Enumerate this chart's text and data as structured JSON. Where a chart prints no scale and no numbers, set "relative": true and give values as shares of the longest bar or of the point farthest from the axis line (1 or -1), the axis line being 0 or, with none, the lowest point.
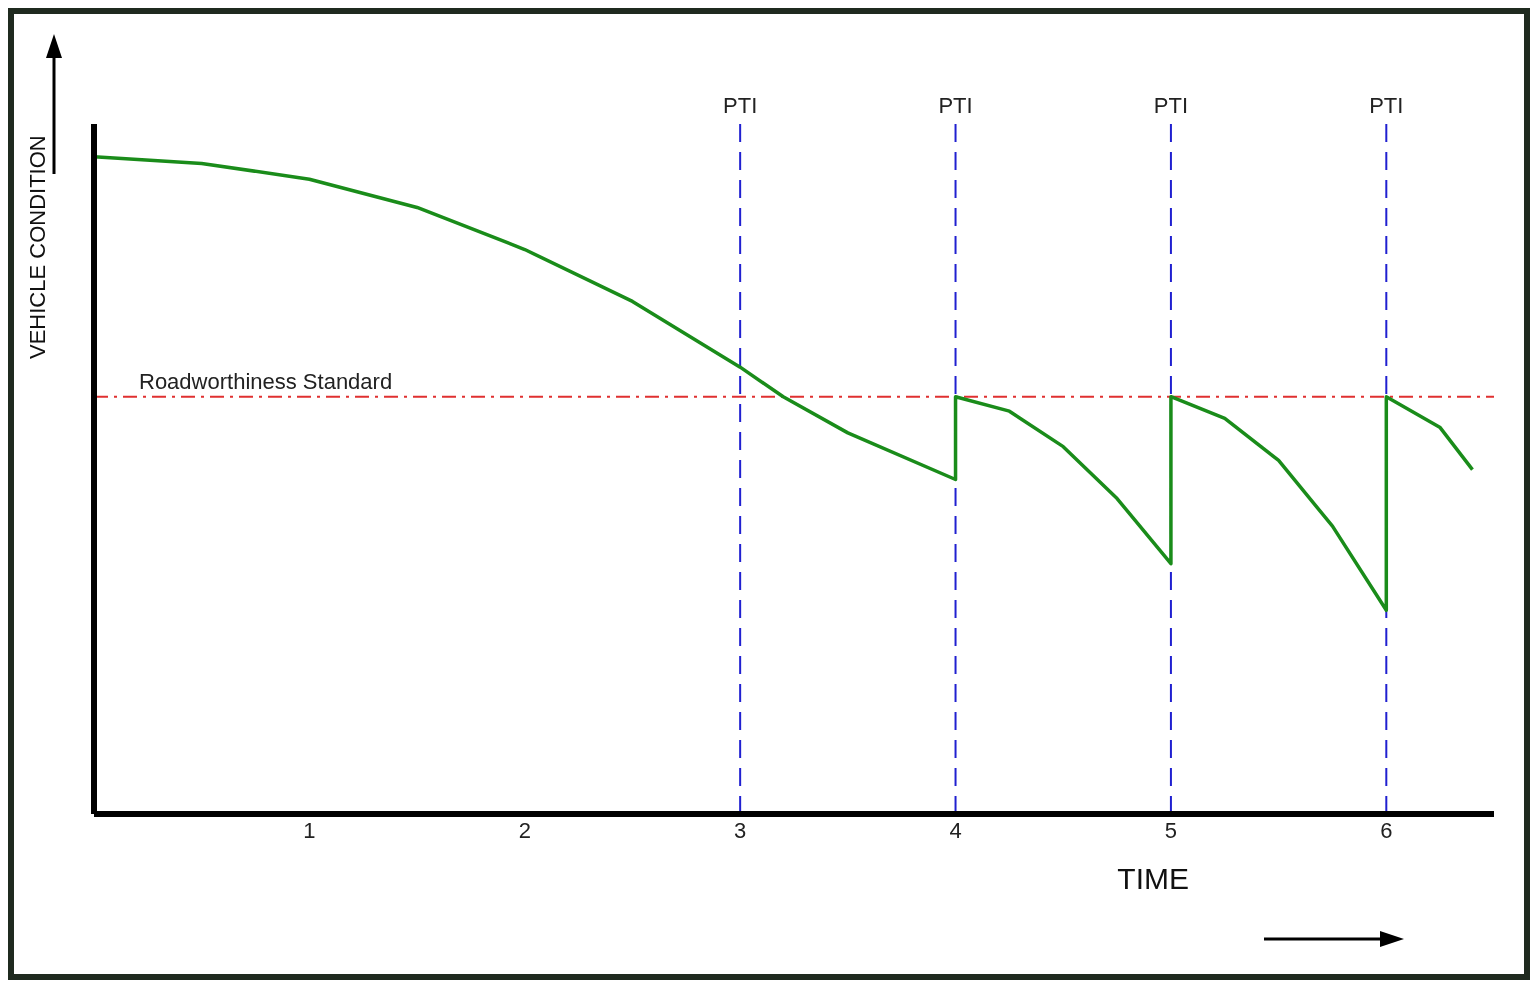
{
  "chart_data": {
    "type": "line",
    "relative": true,
    "xlabel": "TIME",
    "ylabel": "VEHICLE CONDITION",
    "xlim": [
      0,
      6.5
    ],
    "xticks": [
      1,
      2,
      3,
      4,
      5,
      6
    ],
    "grid": false,
    "legend": false,
    "marker": "none",
    "line_style": "solid",
    "series": [
      {
        "color": "#1a8c1a",
        "x": [
          0,
          0.5,
          1,
          1.5,
          2,
          2.5,
          3,
          3.2,
          3.5,
          4,
          4,
          4.25,
          4.5,
          4.75,
          5,
          5,
          5.25,
          5.5,
          5.75,
          6,
          6,
          6.25,
          6.4
        ],
        "values": [
          1,
          0.99,
          0.966,
          0.923,
          0.859,
          0.78,
          0.68,
          0.635,
          0.58,
          0.509,
          0.635,
          0.613,
          0.559,
          0.48,
          0.381,
          0.635,
          0.602,
          0.538,
          0.438,
          0.31,
          0.635,
          0.588,
          0.524
        ]
      }
    ],
    "ref_lines": [
      {
        "axis": "y",
        "value": 0.635,
        "label": "Roadworthiness Standard",
        "color": "#e03030",
        "line_style": "dashdot"
      },
      {
        "axis": "x",
        "value": 3,
        "label": "PTI",
        "color": "#2020d0",
        "line_style": "dashed"
      },
      {
        "axis": "x",
        "value": 4,
        "label": "PTI",
        "color": "#2020d0",
        "line_style": "dashed"
      },
      {
        "axis": "x",
        "value": 5,
        "label": "PTI",
        "color": "#2020d0",
        "line_style": "dashed"
      },
      {
        "axis": "x",
        "value": 6,
        "label": "PTI",
        "color": "#2020d0",
        "line_style": "dashed"
      }
    ]
  }
}
